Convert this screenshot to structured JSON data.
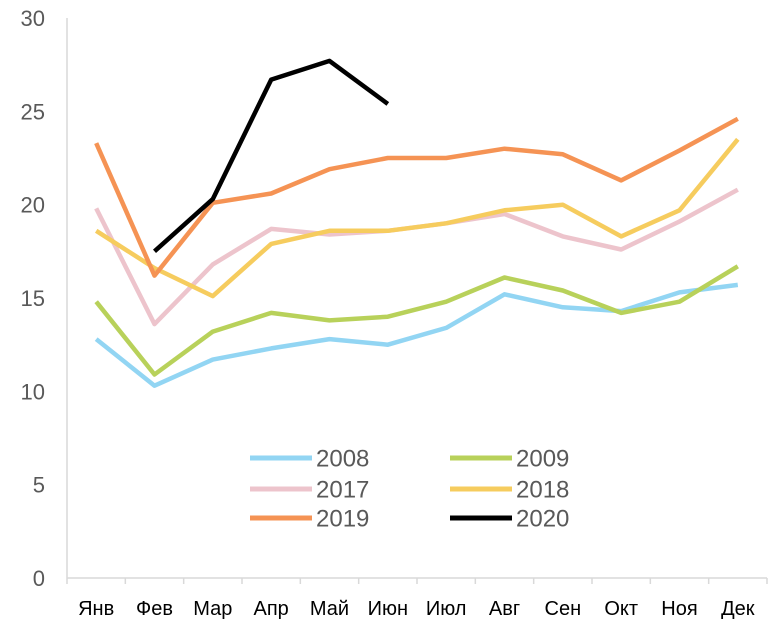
{
  "chart_data": {
    "type": "line",
    "title": "",
    "xlabel": "",
    "ylabel": "",
    "ylim": [
      0,
      30
    ],
    "yticks": [
      0,
      5,
      10,
      15,
      20,
      25,
      30
    ],
    "grid": false,
    "legend_position": "center",
    "categories": [
      "Янв",
      "Фев",
      "Мар",
      "Апр",
      "Май",
      "Июн",
      "Июл",
      "Авг",
      "Сен",
      "Окт",
      "Ноя",
      "Дек"
    ],
    "series": [
      {
        "name": "2008",
        "color": "#92D5F3",
        "values": [
          12.8,
          10.3,
          11.7,
          12.3,
          12.8,
          12.5,
          13.4,
          15.2,
          14.5,
          14.3,
          15.3,
          15.7
        ]
      },
      {
        "name": "2009",
        "color": "#B8D15A",
        "values": [
          14.8,
          10.9,
          13.2,
          14.2,
          13.8,
          14.0,
          14.8,
          16.1,
          15.4,
          14.2,
          14.8,
          16.7
        ]
      },
      {
        "name": "2017",
        "color": "#EDC4CC",
        "values": [
          19.8,
          13.6,
          16.8,
          18.7,
          18.4,
          18.6,
          19.0,
          19.5,
          18.3,
          17.6,
          19.1,
          20.8
        ]
      },
      {
        "name": "2018",
        "color": "#F6CC5E",
        "values": [
          18.6,
          16.6,
          15.1,
          17.9,
          18.6,
          18.6,
          19.0,
          19.7,
          20.0,
          18.3,
          19.7,
          23.5
        ]
      },
      {
        "name": "2019",
        "color": "#F59354",
        "values": [
          23.3,
          16.2,
          20.1,
          20.6,
          21.9,
          22.5,
          22.5,
          23.0,
          22.7,
          21.3,
          22.9,
          24.6
        ]
      },
      {
        "name": "2020",
        "color": "#000000",
        "values": [
          null,
          17.5,
          20.3,
          26.7,
          27.7,
          25.4,
          null,
          null,
          null,
          null,
          null,
          null
        ]
      }
    ]
  }
}
